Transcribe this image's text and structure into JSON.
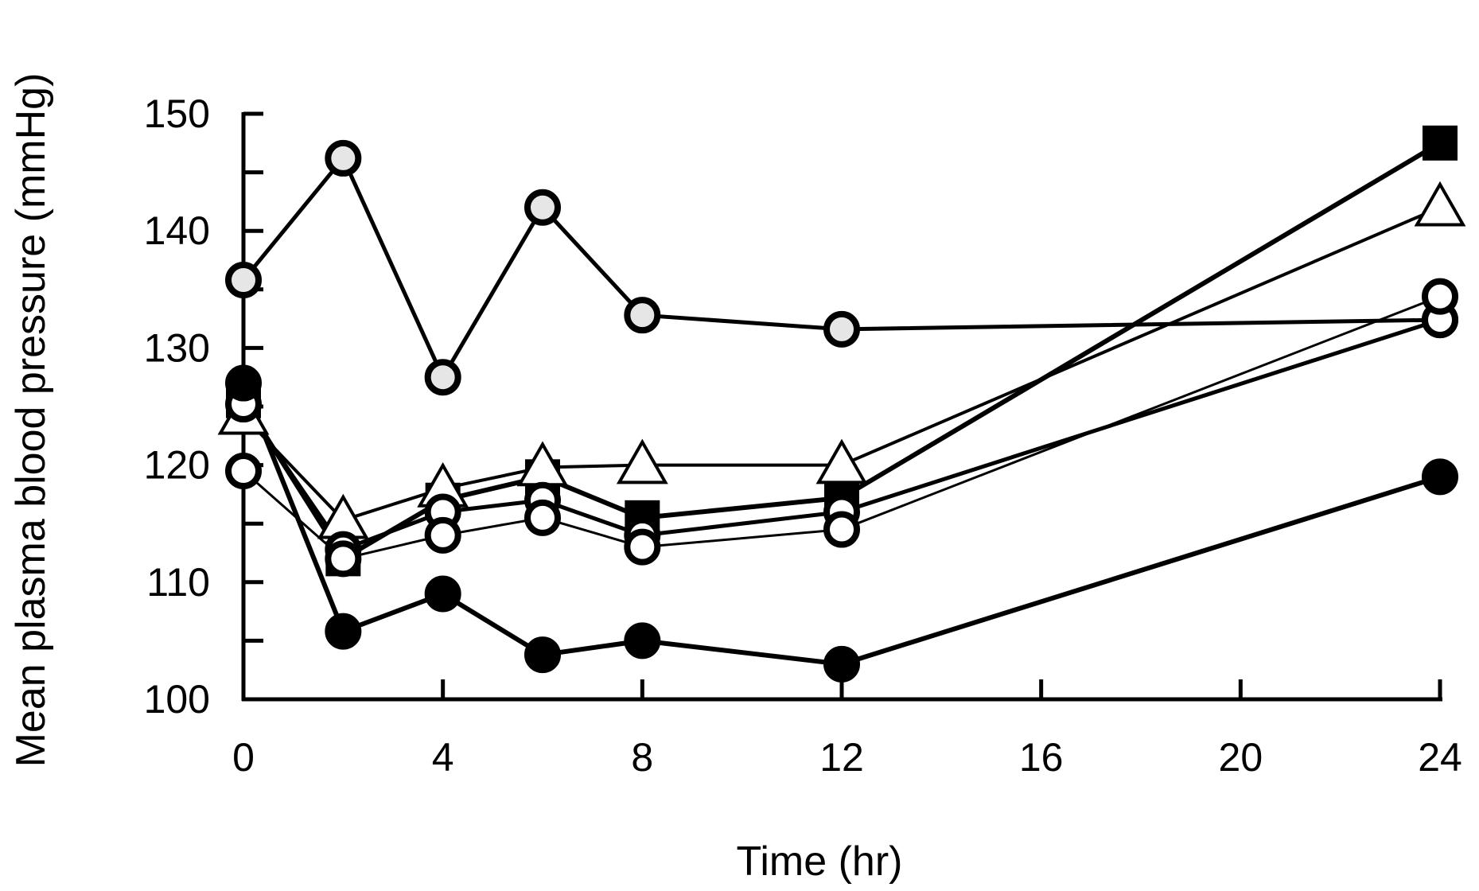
{
  "chart_data": {
    "type": "line",
    "title": "",
    "xlabel": "Time (hr)",
    "ylabel": "Mean plasma blood pressure (mmHg)",
    "xlim": [
      0,
      24
    ],
    "ylim": [
      100,
      150
    ],
    "xticks": [
      0,
      4,
      8,
      12,
      16,
      20,
      24
    ],
    "yticks": [
      100,
      110,
      120,
      130,
      140,
      150
    ],
    "x": [
      0,
      2,
      4,
      6,
      8,
      12,
      24
    ],
    "grid": false,
    "series": [
      {
        "name": "gray circles",
        "marker": "circle",
        "fill": "#e6e6e6",
        "lineWidth": 5,
        "values": [
          135.8,
          146.2,
          127.5,
          142,
          132.8,
          131.6,
          132.4
        ]
      },
      {
        "name": "filled squares",
        "marker": "square",
        "fill": "#000000",
        "lineWidth": 6,
        "values": [
          125.5,
          112,
          117,
          119,
          115.5,
          117.2,
          147.5
        ]
      },
      {
        "name": "open triangles",
        "marker": "triangle",
        "fill": "#ffffff",
        "lineWidth": 4,
        "values": [
          124.2,
          115.3,
          118,
          119.8,
          120,
          120,
          142
        ]
      },
      {
        "name": "open circles (thick)",
        "marker": "circle",
        "fill": "#ffffff",
        "lineWidth": 5,
        "values": [
          125.2,
          112.8,
          116,
          117,
          114,
          116,
          132.4
        ]
      },
      {
        "name": "open circles (thin)",
        "marker": "circle",
        "fill": "#ffffff",
        "lineWidth": 3,
        "values": [
          119.5,
          112,
          114,
          115.5,
          113,
          114.5,
          134.4
        ]
      },
      {
        "name": "filled circles",
        "marker": "circle",
        "fill": "#000000",
        "lineWidth": 6,
        "values": [
          127,
          105.8,
          109,
          103.8,
          105,
          103,
          119
        ]
      }
    ]
  }
}
